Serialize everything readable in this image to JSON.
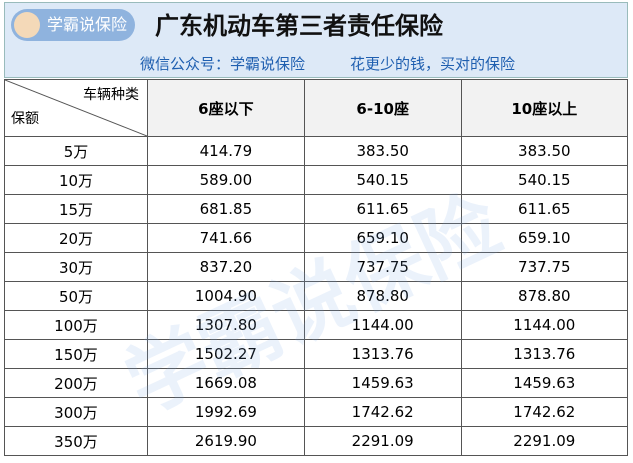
{
  "header": {
    "logo": "学霸说保险",
    "title": "广东机动车第三者责任保险",
    "subtitle_left": "微信公众号：学霸说保险",
    "subtitle_right": "花更少的钱，买对的保险"
  },
  "watermark": "学霸说保险",
  "table": {
    "corner_top": "车辆种类",
    "corner_bottom": "保额",
    "columns": [
      "6座以下",
      "6-10座",
      "10座以上"
    ],
    "rows": [
      [
        "5万",
        "414.79",
        "383.50",
        "383.50"
      ],
      [
        "10万",
        "589.00",
        "540.15",
        "540.15"
      ],
      [
        "15万",
        "681.85",
        "611.65",
        "611.65"
      ],
      [
        "20万",
        "741.66",
        "659.10",
        "659.10"
      ],
      [
        "30万",
        "837.20",
        "737.75",
        "737.75"
      ],
      [
        "50万",
        "1004.90",
        "878.80",
        "878.80"
      ],
      [
        "100万",
        "1307.80",
        "1144.00",
        "1144.00"
      ],
      [
        "150万",
        "1502.27",
        "1313.76",
        "1313.76"
      ],
      [
        "200万",
        "1669.08",
        "1459.63",
        "1459.63"
      ],
      [
        "300万",
        "1992.69",
        "1742.62",
        "1742.62"
      ],
      [
        "350万",
        "2619.90",
        "2291.09",
        "2291.09"
      ]
    ]
  }
}
